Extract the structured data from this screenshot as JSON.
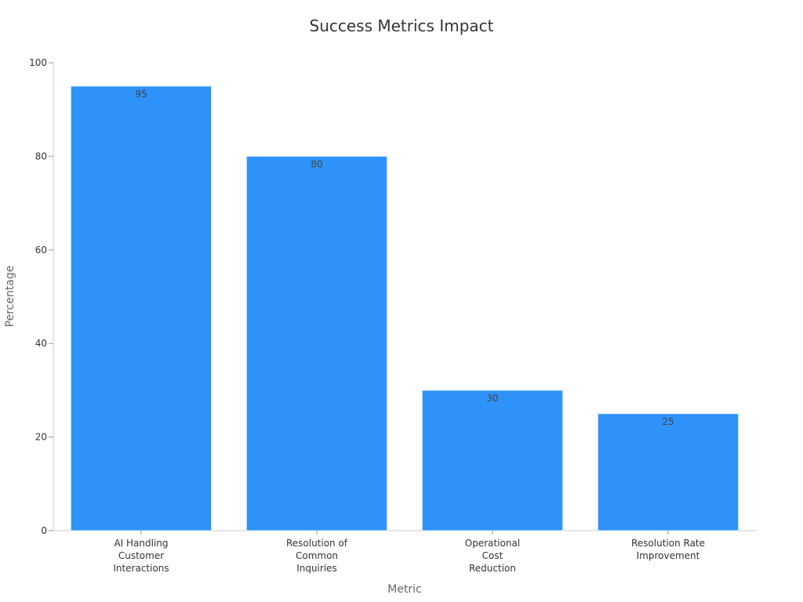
{
  "chart_data": {
    "type": "bar",
    "title": "Success Metrics Impact",
    "xlabel": "Metric",
    "ylabel": "Percentage",
    "categories": [
      "AI Handling Customer Interactions",
      "Resolution of Common Inquiries",
      "Operational Cost Reduction",
      "Resolution Rate Improvement"
    ],
    "category_lines": [
      [
        "AI Handling",
        "Customer",
        "Interactions"
      ],
      [
        "Resolution of",
        "Common",
        "Inquiries"
      ],
      [
        "Operational",
        "Cost",
        "Reduction"
      ],
      [
        "Resolution Rate",
        "Improvement"
      ]
    ],
    "values": [
      95,
      80,
      30,
      25
    ],
    "ylim": [
      0,
      100
    ],
    "yticks": [
      0,
      20,
      40,
      60,
      80,
      100
    ],
    "grid": false,
    "bar_color": "#2e92f8",
    "bar_edge_color": "#d6ecff"
  }
}
